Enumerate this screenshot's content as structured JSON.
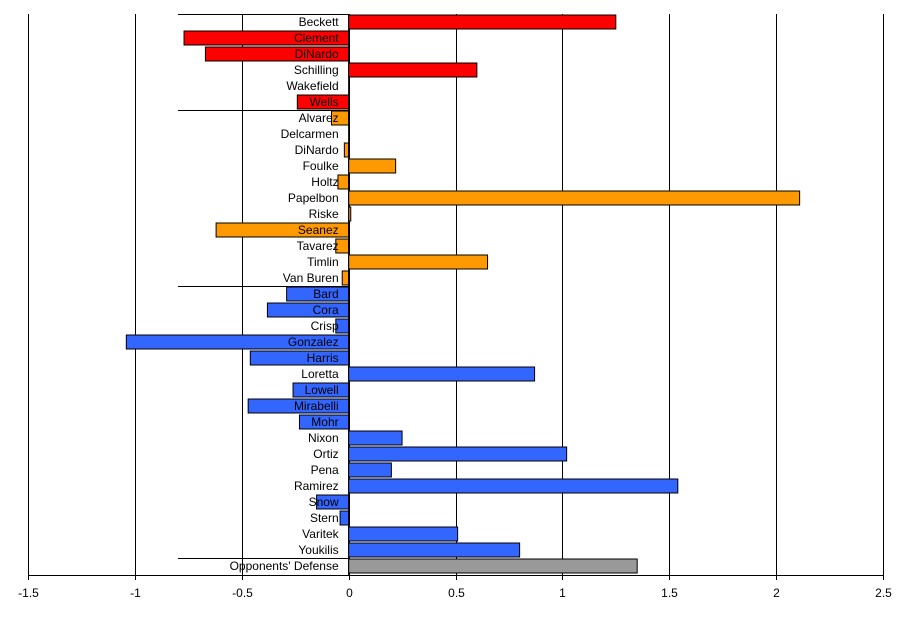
{
  "chart_data": {
    "type": "bar",
    "orientation": "horizontal",
    "title": "",
    "xlabel": "",
    "ylabel": "",
    "xlim": [
      -1.5,
      2.5
    ],
    "x_ticks": [
      "-1.5",
      "-1",
      "-0.5",
      "0",
      "0.5",
      "1",
      "1.5",
      "2",
      "2.5"
    ],
    "grid": "vertical",
    "legend": "none",
    "colors": {
      "starters": "#ff0000",
      "relievers": "#ff9900",
      "hitters": "#3366ff",
      "opponents": "#999999"
    },
    "groups": [
      {
        "color_key": "starters",
        "bars": [
          {
            "label": "Beckett",
            "value": 1.25
          },
          {
            "label": "Clement",
            "value": -0.77
          },
          {
            "label": "DiNardo",
            "value": -0.67
          },
          {
            "label": "Schilling",
            "value": 0.6
          },
          {
            "label": "Wakefield",
            "value": 0.0
          },
          {
            "label": "Wells",
            "value": -0.24
          }
        ]
      },
      {
        "color_key": "relievers",
        "bars": [
          {
            "label": "Alvarez",
            "value": -0.08
          },
          {
            "label": "Delcarmen",
            "value": 0.0
          },
          {
            "label": "DiNardo",
            "value": -0.02
          },
          {
            "label": "Foulke",
            "value": 0.22
          },
          {
            "label": "Holtz",
            "value": -0.05
          },
          {
            "label": "Papelbon",
            "value": 2.11
          },
          {
            "label": "Riske",
            "value": 0.01
          },
          {
            "label": "Seanez",
            "value": -0.62
          },
          {
            "label": "Tavarez",
            "value": -0.06
          },
          {
            "label": "Timlin",
            "value": 0.65
          },
          {
            "label": "Van Buren",
            "value": -0.03
          }
        ]
      },
      {
        "color_key": "hitters",
        "bars": [
          {
            "label": "Bard",
            "value": -0.29
          },
          {
            "label": "Cora",
            "value": -0.38
          },
          {
            "label": "Crisp",
            "value": -0.06
          },
          {
            "label": "Gonzalez",
            "value": -1.04
          },
          {
            "label": "Harris",
            "value": -0.46
          },
          {
            "label": "Loretta",
            "value": 0.87
          },
          {
            "label": "Lowell",
            "value": -0.26
          },
          {
            "label": "Mirabelli",
            "value": -0.47
          },
          {
            "label": "Mohr",
            "value": -0.23
          },
          {
            "label": "Nixon",
            "value": 0.25
          },
          {
            "label": "Ortiz",
            "value": 1.02
          },
          {
            "label": "Pena",
            "value": 0.2
          },
          {
            "label": "Ramirez",
            "value": 1.54
          },
          {
            "label": "Snow",
            "value": -0.15
          },
          {
            "label": "Stern",
            "value": -0.04
          },
          {
            "label": "Varitek",
            "value": 0.51
          },
          {
            "label": "Youkilis",
            "value": 0.8
          }
        ]
      },
      {
        "color_key": "opponents",
        "bars": [
          {
            "label": "Opponents' Defense",
            "value": 1.35
          }
        ]
      }
    ]
  }
}
